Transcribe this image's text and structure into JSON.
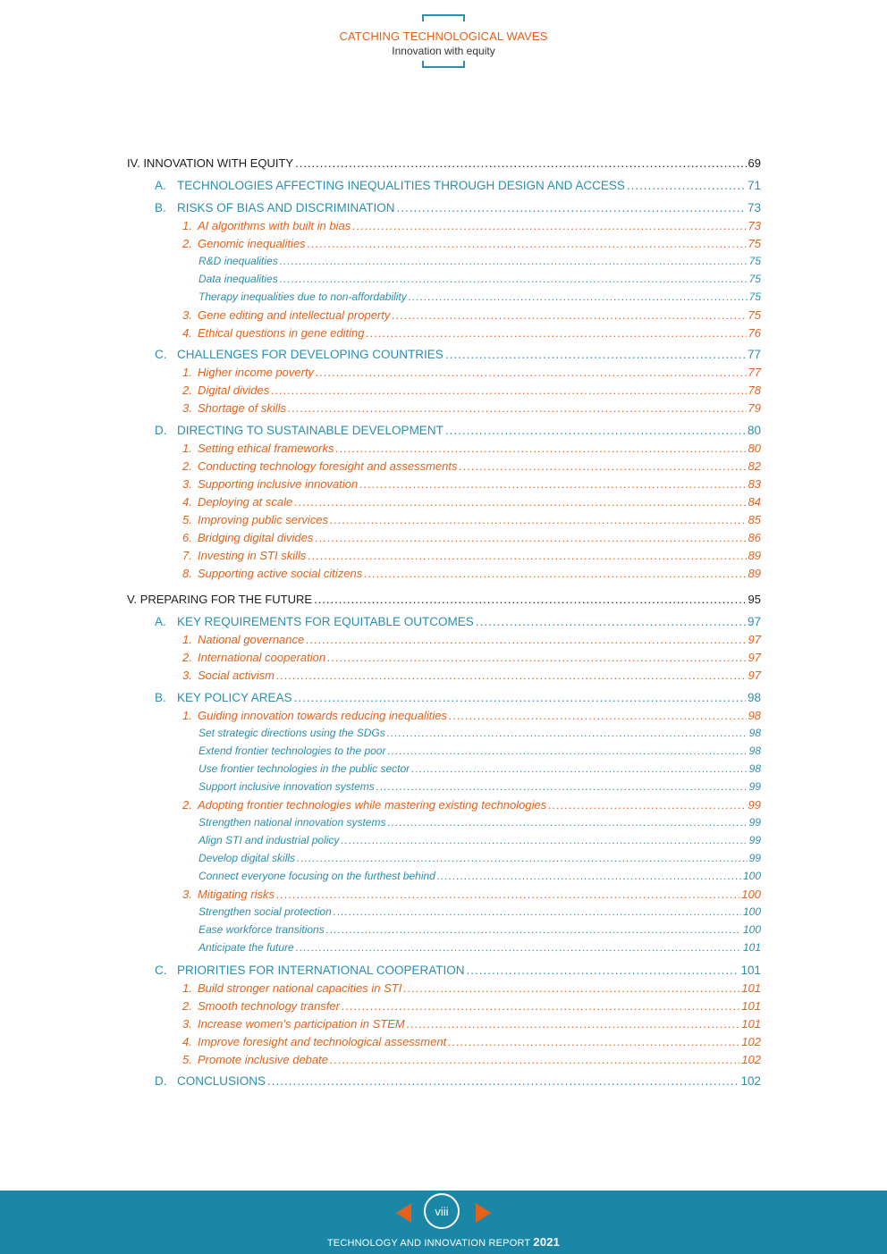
{
  "header": {
    "title": "CATCHING TECHNOLOGICAL WAVES",
    "subtitle": "Innovation with equity"
  },
  "toc": [
    {
      "level": 0,
      "prefix": "",
      "text": "IV. INNOVATION WITH EQUITY",
      "page": "69"
    },
    {
      "level": 1,
      "prefix": "A.",
      "text": "TECHNOLOGIES AFFECTING INEQUALITIES THROUGH DESIGN AND ACCESS",
      "page": "71"
    },
    {
      "level": 1,
      "prefix": "B.",
      "text": "RISKS OF BIAS AND DISCRIMINATION",
      "page": "73"
    },
    {
      "level": 2,
      "prefix": "1.",
      "text": "AI algorithms with built in bias",
      "page": "73"
    },
    {
      "level": 2,
      "prefix": "2.",
      "text": "Genomic inequalities",
      "page": "75"
    },
    {
      "level": 3,
      "prefix": "",
      "text": "R&D inequalities",
      "page": "75"
    },
    {
      "level": 3,
      "prefix": "",
      "text": "Data inequalities",
      "page": "75"
    },
    {
      "level": 3,
      "prefix": "",
      "text": "Therapy inequalities due to non-affordability",
      "page": "75"
    },
    {
      "level": 2,
      "prefix": "3.",
      "text": "Gene editing and intellectual property",
      "page": "75"
    },
    {
      "level": 2,
      "prefix": "4.",
      "text": "Ethical questions in gene editing",
      "page": "76"
    },
    {
      "level": 1,
      "prefix": "C.",
      "text": "CHALLENGES FOR DEVELOPING COUNTRIES",
      "page": "77"
    },
    {
      "level": 2,
      "prefix": "1.",
      "text": "Higher income poverty",
      "page": "77"
    },
    {
      "level": 2,
      "prefix": "2.",
      "text": "Digital divides",
      "page": "78"
    },
    {
      "level": 2,
      "prefix": "3.",
      "text": "Shortage of skills",
      "page": "79"
    },
    {
      "level": 1,
      "prefix": "D.",
      "text": "DIRECTING TO SUSTAINABLE DEVELOPMENT",
      "page": "80"
    },
    {
      "level": 2,
      "prefix": "1.",
      "text": "Setting ethical frameworks",
      "page": "80"
    },
    {
      "level": 2,
      "prefix": "2.",
      "text": "Conducting technology foresight and assessments",
      "page": "82"
    },
    {
      "level": 2,
      "prefix": "3.",
      "text": "Supporting inclusive innovation",
      "page": "83"
    },
    {
      "level": 2,
      "prefix": "4.",
      "text": "Deploying at scale",
      "page": "84"
    },
    {
      "level": 2,
      "prefix": "5.",
      "text": "Improving public services",
      "page": "85"
    },
    {
      "level": 2,
      "prefix": "6.",
      "text": "Bridging digital divides",
      "page": "86"
    },
    {
      "level": 2,
      "prefix": "7.",
      "text": "Investing in STI skills",
      "page": "89"
    },
    {
      "level": 2,
      "prefix": "8.",
      "text": "Supporting active social citizens",
      "page": "89"
    },
    {
      "level": 0,
      "prefix": "",
      "text": "V. PREPARING FOR THE FUTURE",
      "page": "95"
    },
    {
      "level": 1,
      "prefix": "A.",
      "text": "KEY REQUIREMENTS FOR EQUITABLE OUTCOMES",
      "page": "97"
    },
    {
      "level": 2,
      "prefix": "1.",
      "text": "National governance",
      "page": "97"
    },
    {
      "level": 2,
      "prefix": "2.",
      "text": "International cooperation",
      "page": "97"
    },
    {
      "level": 2,
      "prefix": "3.",
      "text": "Social activism",
      "page": "97"
    },
    {
      "level": 1,
      "prefix": "B.",
      "text": "KEY POLICY AREAS",
      "page": "98"
    },
    {
      "level": 2,
      "prefix": "1.",
      "text": "Guiding innovation towards reducing inequalities",
      "page": "98"
    },
    {
      "level": 3,
      "prefix": "",
      "text": "Set strategic directions using the SDGs",
      "page": "98"
    },
    {
      "level": 3,
      "prefix": "",
      "text": "Extend frontier technologies to the poor",
      "page": "98"
    },
    {
      "level": 3,
      "prefix": "",
      "text": "Use frontier technologies in the public sector",
      "page": "98"
    },
    {
      "level": 3,
      "prefix": "",
      "text": "Support inclusive innovation systems",
      "page": "99"
    },
    {
      "level": 2,
      "prefix": "2.",
      "text": "Adopting frontier technologies while mastering existing technologies",
      "page": "99"
    },
    {
      "level": 3,
      "prefix": "",
      "text": "Strengthen national innovation systems",
      "page": "99"
    },
    {
      "level": 3,
      "prefix": "",
      "text": "Align STI and industrial policy",
      "page": "99"
    },
    {
      "level": 3,
      "prefix": "",
      "text": "Develop digital skills",
      "page": "99"
    },
    {
      "level": 3,
      "prefix": "",
      "text": "Connect everyone focusing on the furthest behind",
      "page": "100"
    },
    {
      "level": 2,
      "prefix": "3.",
      "text": "Mitigating risks",
      "page": "100"
    },
    {
      "level": 3,
      "prefix": "",
      "text": "Strengthen social protection",
      "page": "100"
    },
    {
      "level": 3,
      "prefix": "",
      "text": "Ease workforce transitions",
      "page": "100"
    },
    {
      "level": 3,
      "prefix": "",
      "text": "Anticipate the future",
      "page": "101"
    },
    {
      "level": 1,
      "prefix": "C.",
      "text": "PRIORITIES FOR INTERNATIONAL COOPERATION",
      "page": "101"
    },
    {
      "level": 2,
      "prefix": "1.",
      "text": "Build stronger national capacities in STI",
      "page": "101"
    },
    {
      "level": 2,
      "prefix": "2.",
      "text": "Smooth technology transfer",
      "page": "101"
    },
    {
      "level": 2,
      "prefix": "3.",
      "text": "Increase women’s participation in STEM",
      "page": "101"
    },
    {
      "level": 2,
      "prefix": "4.",
      "text": "Improve foresight and technological assessment",
      "page": "102"
    },
    {
      "level": 2,
      "prefix": "5.",
      "text": "Promote inclusive debate",
      "page": "102"
    },
    {
      "level": 1,
      "prefix": "D.",
      "text": "CONCLUSIONS",
      "page": "102"
    }
  ],
  "footer": {
    "page_number": "viii",
    "report_title": "TECHNOLOGY AND INNOVATION REPORT",
    "year": "2021",
    "prev_icon": "arrow-left-icon",
    "next_icon": "arrow-right-icon"
  }
}
